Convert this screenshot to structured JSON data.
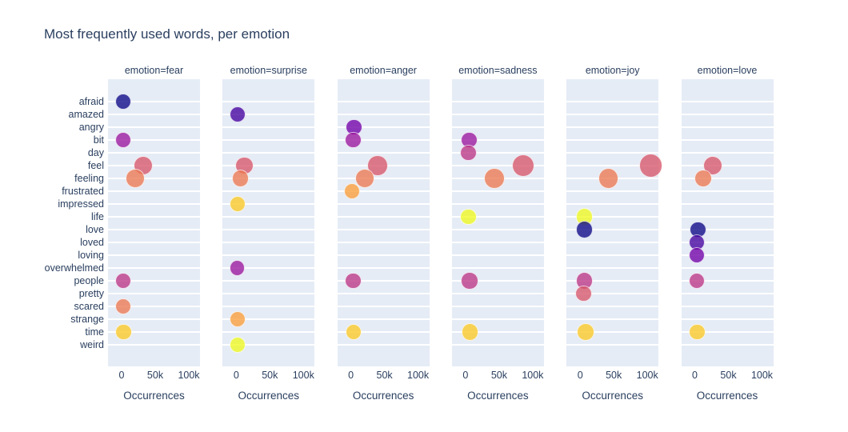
{
  "title": "Most frequently used words, per emotion",
  "colors": {
    "text": "#2a3f5f",
    "panel_bg": "#e5ecf6",
    "gridline": "#ffffff",
    "marker_opacity": 0.78,
    "marker_outline": "#ffffff"
  },
  "chart_data": {
    "type": "scatter",
    "title": "Most frequently used words, per emotion",
    "xlabel": "Occurrences",
    "ylabel": "",
    "x_tick_labels": [
      "0",
      "50k",
      "100k"
    ],
    "x_tick_values": [
      0,
      50000,
      100000
    ],
    "xlim": [
      0,
      116000
    ],
    "grid": "horizontal-only",
    "legend_position": "none",
    "categories": [
      "afraid",
      "amazed",
      "angry",
      "bit",
      "day",
      "feel",
      "feeling",
      "frustrated",
      "impressed",
      "life",
      "love",
      "loved",
      "loving",
      "overwhelmed",
      "people",
      "pretty",
      "scared",
      "strange",
      "time",
      "weird"
    ],
    "word_colors": {
      "afraid": "#0d0887",
      "amazed": "#46039f",
      "angry": "#7201a8",
      "bit": "#9c179e",
      "day": "#bd3786",
      "feel": "#d8576b",
      "feeling": "#ed7953",
      "frustrated": "#fb9f3a",
      "impressed": "#fdca26",
      "life": "#f0f921",
      "love": "#0d0887",
      "loved": "#46039f",
      "loving": "#7201a8",
      "overwhelmed": "#9c179e",
      "people": "#bd3786",
      "pretty": "#d8576b",
      "scared": "#ed7953",
      "strange": "#fb9f3a",
      "time": "#fdca26",
      "weird": "#f0f921"
    },
    "facets": [
      {
        "label": "emotion=fear",
        "points": [
          {
            "word": "afraid",
            "count": 2000
          },
          {
            "word": "bit",
            "count": 2000
          },
          {
            "word": "feel",
            "count": 32000
          },
          {
            "word": "feeling",
            "count": 20000
          },
          {
            "word": "people",
            "count": 2000
          },
          {
            "word": "scared",
            "count": 2500
          },
          {
            "word": "time",
            "count": 3000
          }
        ]
      },
      {
        "label": "emotion=surprise",
        "points": [
          {
            "word": "amazed",
            "count": 2000
          },
          {
            "word": "feel",
            "count": 12000
          },
          {
            "word": "feeling",
            "count": 6500
          },
          {
            "word": "impressed",
            "count": 2000
          },
          {
            "word": "overwhelmed",
            "count": 1200
          },
          {
            "word": "strange",
            "count": 2000
          },
          {
            "word": "weird",
            "count": 1800
          }
        ]
      },
      {
        "label": "emotion=anger",
        "points": [
          {
            "word": "angry",
            "count": 4500
          },
          {
            "word": "bit",
            "count": 3300
          },
          {
            "word": "feel",
            "count": 40000
          },
          {
            "word": "feeling",
            "count": 21000
          },
          {
            "word": "frustrated",
            "count": 2200
          },
          {
            "word": "people",
            "count": 3300
          },
          {
            "word": "time",
            "count": 4000
          }
        ]
      },
      {
        "label": "emotion=sadness",
        "points": [
          {
            "word": "bit",
            "count": 5000
          },
          {
            "word": "day",
            "count": 4000
          },
          {
            "word": "feel",
            "count": 86000
          },
          {
            "word": "feeling",
            "count": 43000
          },
          {
            "word": "life",
            "count": 4000
          },
          {
            "word": "people",
            "count": 6000
          },
          {
            "word": "time",
            "count": 7000
          }
        ]
      },
      {
        "label": "emotion=joy",
        "points": [
          {
            "word": "feel",
            "count": 105000
          },
          {
            "word": "feeling",
            "count": 42000
          },
          {
            "word": "life",
            "count": 6000
          },
          {
            "word": "love",
            "count": 6000
          },
          {
            "word": "people",
            "count": 6000
          },
          {
            "word": "pretty",
            "count": 5000
          },
          {
            "word": "time",
            "count": 8000
          }
        ]
      },
      {
        "label": "emotion=love",
        "points": [
          {
            "word": "feel",
            "count": 27000
          },
          {
            "word": "feeling",
            "count": 12500
          },
          {
            "word": "love",
            "count": 4500
          },
          {
            "word": "loved",
            "count": 3300
          },
          {
            "word": "loving",
            "count": 3300
          },
          {
            "word": "people",
            "count": 3300
          },
          {
            "word": "time",
            "count": 3800
          }
        ]
      }
    ]
  }
}
